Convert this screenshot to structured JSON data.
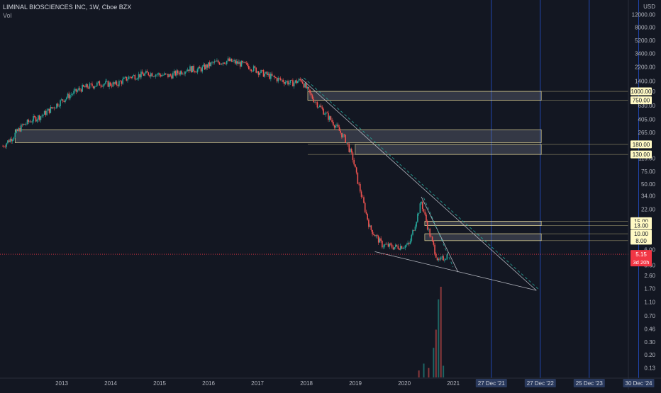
{
  "header": {
    "title": "LIMINAL BIOSCIENCES INC, 1W, Cboe BZX",
    "volume_label": "Vol"
  },
  "colors": {
    "background": "#131722",
    "up": "#26a69a",
    "down": "#ef5350",
    "current_price_tag": "#f23645",
    "level_tag": "#fff9c4",
    "trendline": "#b2b5be",
    "dashed_line": "#26a69a",
    "vertical_line": "#2962ff"
  },
  "chart_data": {
    "type": "candlestick",
    "scale": "log",
    "currency": "USD",
    "ylim": [
      0.11,
      16000
    ],
    "x_ticks": [
      "2013",
      "2014",
      "2015",
      "2016",
      "2017",
      "2018",
      "2019",
      "2020",
      "2021"
    ],
    "y_ticks": [
      "12000.00",
      "8000.00",
      "5200.00",
      "3400.00",
      "2200.00",
      "1400.00",
      "1000.00",
      "630.00",
      "405.00",
      "265.00",
      "115.00",
      "75.00",
      "50.00",
      "34.00",
      "22.00",
      "6.00",
      "3.60",
      "2.60",
      "1.70",
      "1.10",
      "0.70",
      "0.46",
      "0.30",
      "0.20",
      "0.13"
    ],
    "y_tick_values": [
      12000,
      8000,
      5200,
      3400,
      2200,
      1400,
      1000,
      630,
      405,
      265,
      115,
      75,
      50,
      34,
      22,
      6,
      3.6,
      2.6,
      1.7,
      1.1,
      0.7,
      0.46,
      0.3,
      0.2,
      0.13
    ],
    "price_levels": [
      {
        "label": "1000.00",
        "value": 1000
      },
      {
        "label": "750.00",
        "value": 750
      },
      {
        "label": "180.00",
        "value": 180
      },
      {
        "label": "130.00",
        "value": 130
      },
      {
        "label": "15.00",
        "value": 15
      },
      {
        "label": "13.00",
        "value": 13
      },
      {
        "label": "10.00",
        "value": 10
      },
      {
        "label": "8.00",
        "value": 8
      }
    ],
    "current_price": {
      "label": "5.15",
      "value": 5.15,
      "countdown": "3d 20h"
    },
    "zones": [
      {
        "x_from": 2018.23,
        "x_to": 2023.0,
        "low": 750,
        "high": 1000
      },
      {
        "x_from": 2012.25,
        "x_to": 2023.0,
        "low": 190,
        "high": 290
      },
      {
        "x_from": 2019.2,
        "x_to": 2023.0,
        "low": 130,
        "high": 180
      },
      {
        "x_from": 2020.62,
        "x_to": 2023.0,
        "low": 13,
        "high": 15
      },
      {
        "x_from": 2020.62,
        "x_to": 2023.0,
        "low": 8,
        "high": 10
      }
    ],
    "date_markers": [
      {
        "label": "27 Dec '21",
        "x": 2021.98
      },
      {
        "label": "27 Dec '22",
        "x": 2022.98
      },
      {
        "label": "25 Dec '23",
        "x": 2023.98
      },
      {
        "label": "30 Dec '24",
        "x": 2024.99
      }
    ],
    "weekly_closes": [
      {
        "x": 2012.0,
        "close": 170
      },
      {
        "x": 2012.2,
        "close": 230
      },
      {
        "x": 2012.4,
        "close": 330
      },
      {
        "x": 2012.6,
        "close": 400
      },
      {
        "x": 2012.8,
        "close": 460
      },
      {
        "x": 2013.0,
        "close": 580
      },
      {
        "x": 2013.3,
        "close": 830
      },
      {
        "x": 2013.6,
        "close": 1100
      },
      {
        "x": 2014.0,
        "close": 1300
      },
      {
        "x": 2014.3,
        "close": 1250
      },
      {
        "x": 2014.6,
        "close": 1600
      },
      {
        "x": 2015.0,
        "close": 1800
      },
      {
        "x": 2015.4,
        "close": 1650
      },
      {
        "x": 2015.8,
        "close": 2100
      },
      {
        "x": 2016.0,
        "close": 2000
      },
      {
        "x": 2016.3,
        "close": 2500
      },
      {
        "x": 2016.6,
        "close": 2700
      },
      {
        "x": 2017.0,
        "close": 2300
      },
      {
        "x": 2017.3,
        "close": 1800
      },
      {
        "x": 2017.6,
        "close": 1500
      },
      {
        "x": 2017.9,
        "close": 1300
      },
      {
        "x": 2018.1,
        "close": 1450
      },
      {
        "x": 2018.3,
        "close": 850
      },
      {
        "x": 2018.5,
        "close": 580
      },
      {
        "x": 2018.8,
        "close": 330
      },
      {
        "x": 2019.0,
        "close": 210
      },
      {
        "x": 2019.15,
        "close": 115
      },
      {
        "x": 2019.25,
        "close": 55
      },
      {
        "x": 2019.5,
        "close": 12
      },
      {
        "x": 2019.75,
        "close": 7
      },
      {
        "x": 2020.0,
        "close": 6.5
      },
      {
        "x": 2020.3,
        "close": 7
      },
      {
        "x": 2020.55,
        "close": 28
      },
      {
        "x": 2020.7,
        "close": 11
      },
      {
        "x": 2020.9,
        "close": 4
      },
      {
        "x": 2021.1,
        "close": 5.15
      }
    ],
    "volume": [
      {
        "x": 2020.5,
        "value": 0.12
      },
      {
        "x": 2020.6,
        "value": 0.15
      },
      {
        "x": 2020.7,
        "value": 0.13
      },
      {
        "x": 2020.8,
        "value": 0.25
      },
      {
        "x": 2020.85,
        "value": 0.45
      },
      {
        "x": 2020.9,
        "value": 1.2
      },
      {
        "x": 2020.95,
        "value": 1.8
      },
      {
        "x": 2021.0,
        "value": 0.14
      }
    ],
    "trendlines": [
      {
        "x1": 2018.1,
        "y1": 1500,
        "x2": 2022.9,
        "y2": 1.6,
        "style": "solid"
      },
      {
        "x1": 2018.15,
        "y1": 1550,
        "x2": 2022.95,
        "y2": 1.65,
        "style": "dashed"
      },
      {
        "x1": 2019.6,
        "y1": 5.6,
        "x2": 2022.9,
        "y2": 1.6,
        "style": "solid"
      },
      {
        "x1": 2020.55,
        "y1": 33,
        "x2": 2021.3,
        "y2": 2.9,
        "style": "solid"
      },
      {
        "x1": 2020.6,
        "y1": 32,
        "x2": 2021.2,
        "y2": 3.4,
        "style": "dashed"
      }
    ]
  }
}
